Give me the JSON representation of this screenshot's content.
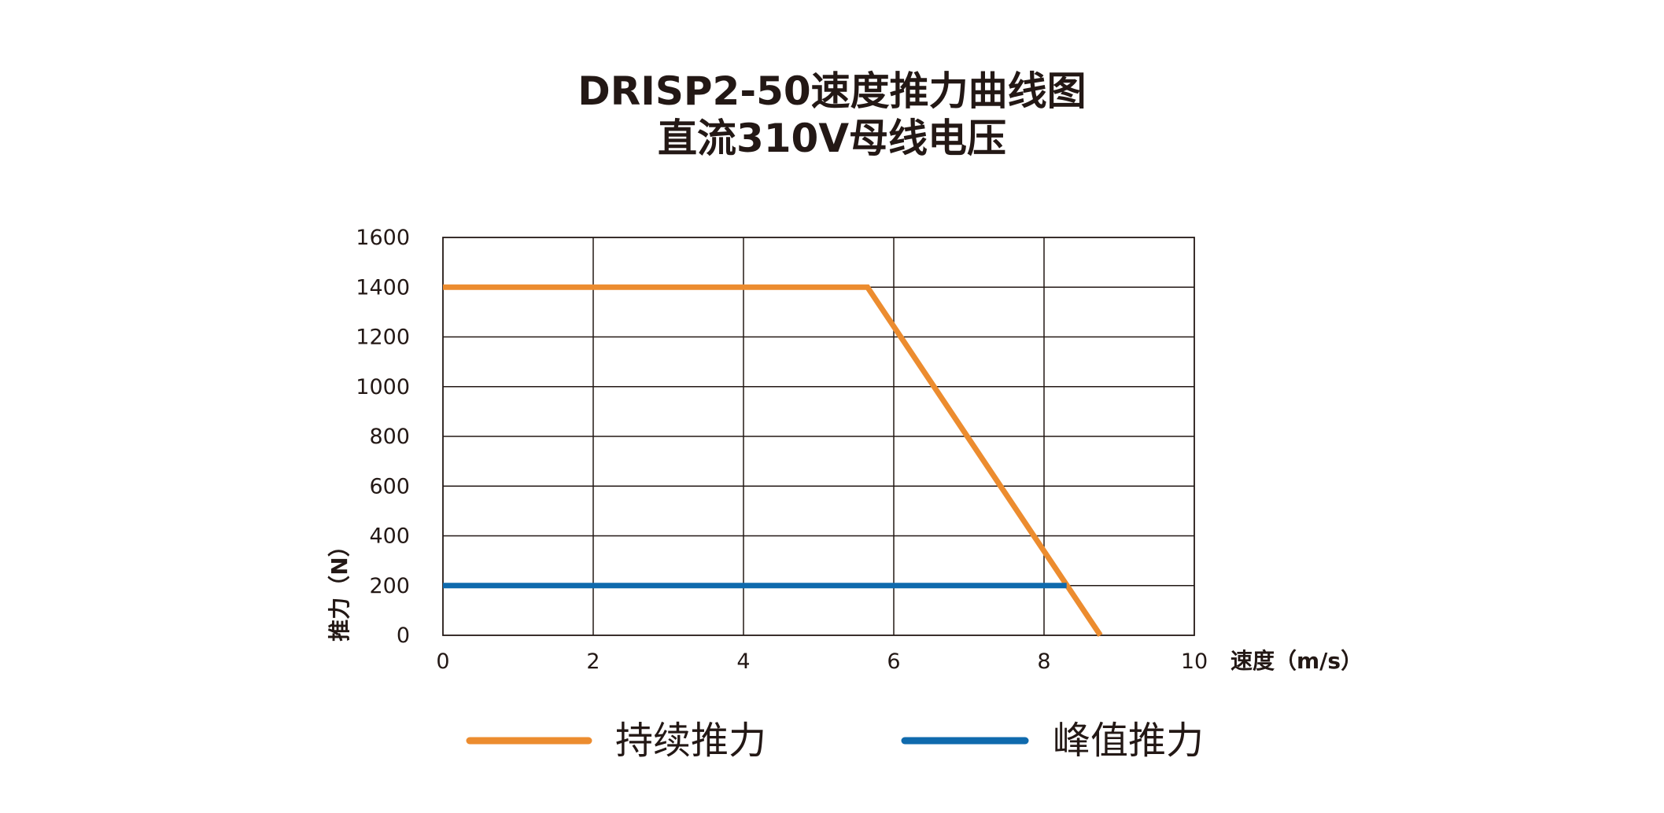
{
  "chart_data": {
    "type": "line",
    "title": "DRISP2-50速度推力曲线图",
    "subtitle": "直流310V母线电压",
    "xlabel": "速度（m/s）",
    "ylabel": "推力（N）",
    "xlim": [
      0,
      10
    ],
    "ylim": [
      0,
      1600
    ],
    "x_ticks": [
      0,
      2,
      4,
      6,
      8,
      10
    ],
    "y_ticks": [
      0,
      200,
      400,
      600,
      800,
      1000,
      1200,
      1400,
      1600
    ],
    "grid": true,
    "legend_position": "bottom",
    "series": [
      {
        "name": "持续推力",
        "color": "#ec8c2f",
        "points": [
          [
            0,
            1400
          ],
          [
            5.65,
            1400
          ],
          [
            8.75,
            0
          ]
        ]
      },
      {
        "name": "峰值推力",
        "color": "#0f6aad",
        "points": [
          [
            0,
            200
          ],
          [
            8.3,
            200
          ]
        ]
      }
    ]
  }
}
